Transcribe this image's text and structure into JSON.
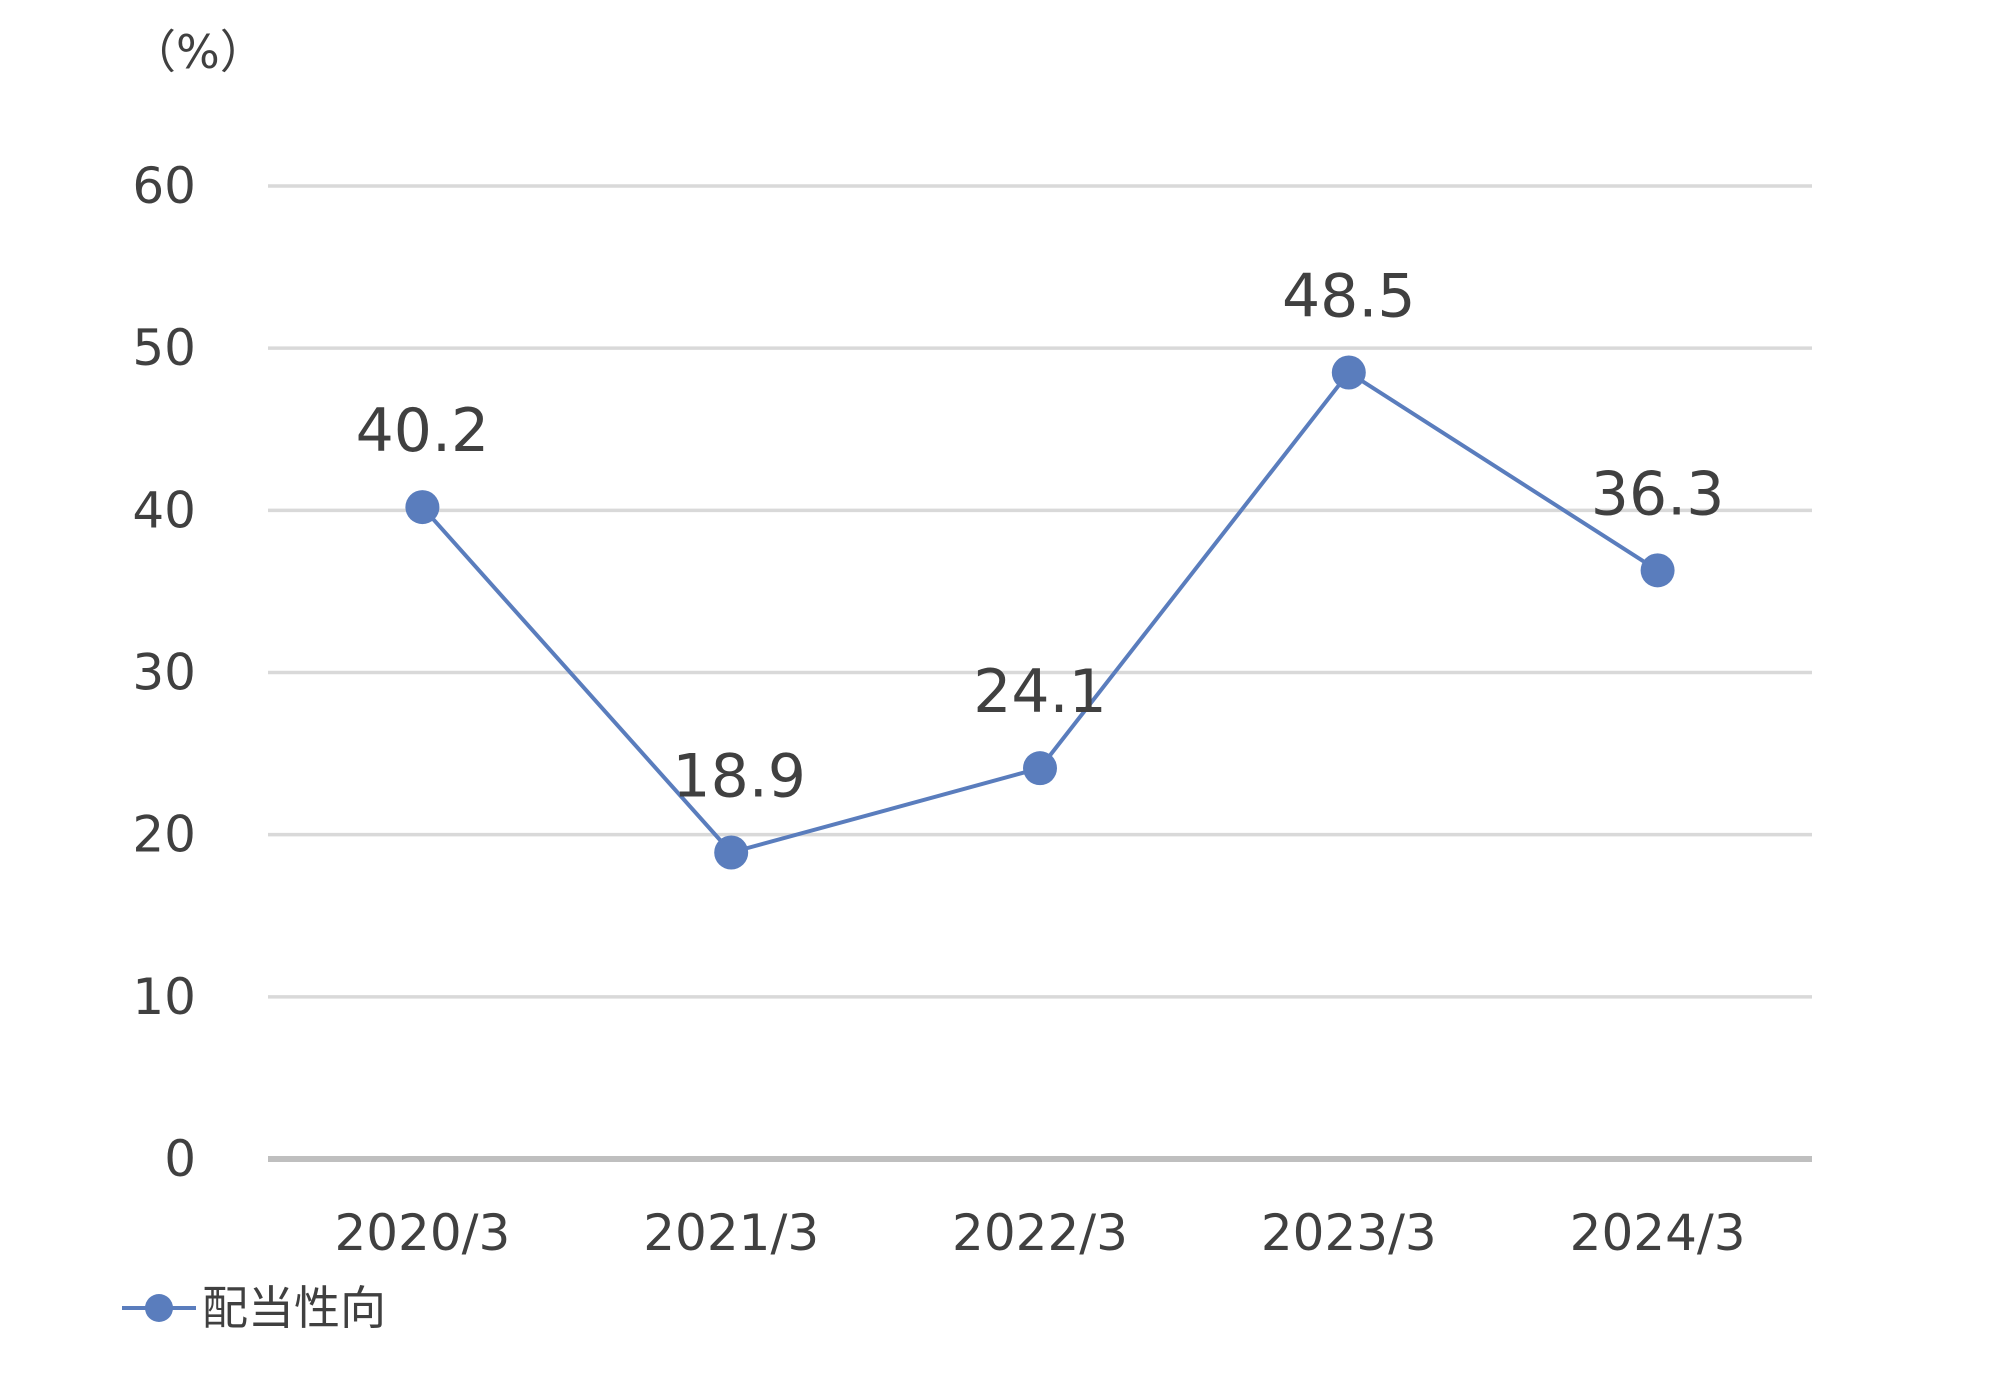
{
  "chart_data": {
    "type": "line",
    "unit_label": "（%）",
    "categories": [
      "2020/3",
      "2021/3",
      "2022/3",
      "2023/3",
      "2024/3"
    ],
    "series": [
      {
        "name": "配当性向",
        "values": [
          40.2,
          18.9,
          24.1,
          48.5,
          36.3
        ],
        "data_labels": [
          "40.2",
          "18.9",
          "24.1",
          "48.5",
          "36.3"
        ],
        "color": "#5a7dbd"
      }
    ],
    "y_ticks": [
      "0",
      "10",
      "20",
      "30",
      "40",
      "50",
      "60"
    ],
    "ylim": [
      0,
      60
    ],
    "grid": true,
    "legend": "bottom-left",
    "colors": {
      "grid": "#d9d9d9",
      "axis": "#bfbfbf",
      "text": "#404040"
    }
  }
}
